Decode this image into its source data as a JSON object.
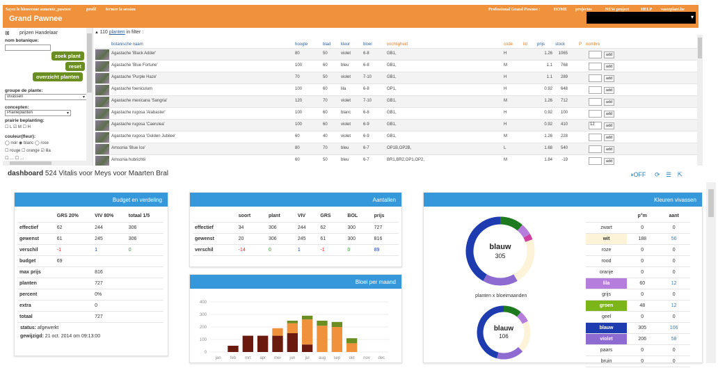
{
  "topbar": {
    "left_text": "Sayez le bienvenue aumente_pawnee",
    "link_profiel": "profil",
    "link_logout": "fermer la session",
    "right_text": "Professional Grand Pawnee :",
    "link_home": "HOME",
    "link_projects": "projectos",
    "link_new": "NEW project",
    "link_help": "HELP",
    "link_site": "vasteplant.be",
    "brand": "Grand Pawnee",
    "dropdown_arrow": "▾"
  },
  "sidebar": {
    "toggle": "⊞",
    "prices_label": "prijzen Handelaar",
    "nom_label": "nom botanique:",
    "btn_search": "zoek plant",
    "btn_reset": "reset",
    "btn_overview": "overzicht planten",
    "group_label": "groupe de plante:",
    "group_value": "vivassen",
    "concepts_label": "concepten:",
    "concepts_value": "Prairieplanten",
    "prairie_label": "prairie beplanting:",
    "prairie_opts": "☐ L ☑ M ☐ H",
    "colour_label": "couleur(fleur):",
    "colours_row1": "◯ noir  ◉ blanc  ◯ rose",
    "colours_row2": "☐ rouge  ☐ orange  ☑ lila",
    "colours_row3": "☐ …   ☐ …"
  },
  "grid": {
    "count": "110",
    "count_link": "planten",
    "count_suffix": "in filter :",
    "headers": {
      "name": "botanische naam",
      "height": "hoogte",
      "leaf": "blad",
      "colour": "kleur",
      "bloom": "bloei",
      "moisture": "vochtigheid",
      "code": "code",
      "lid": "lid",
      "price": "prijs",
      "stock": "stock",
      "p": "P",
      "number": "nombre"
    },
    "add_label": "add",
    "rows": [
      {
        "name": "Agastache 'Black Adder'",
        "height": "80",
        "leaf": "50",
        "colour": "violet",
        "bloom": "6-8",
        "moisture": "GB1,",
        "code": "H",
        "price": "1.26",
        "stock": "1065",
        "qty": ""
      },
      {
        "name": "Agastache 'Blue Fortune'",
        "height": "100",
        "leaf": "60",
        "colour": "bleu",
        "bloom": "6-8",
        "moisture": "GB1,",
        "code": "M",
        "price": "1.1",
        "stock": "768",
        "qty": ""
      },
      {
        "name": "Agastache 'Purple Haze'",
        "height": "70",
        "leaf": "50",
        "colour": "violet",
        "bloom": "7-10",
        "moisture": "GB1,",
        "code": "H",
        "price": "1.1",
        "stock": "289",
        "qty": ""
      },
      {
        "name": "Agastache foeniculum",
        "height": "100",
        "leaf": "60",
        "colour": "lila",
        "bloom": "6-8",
        "moisture": "OP1,",
        "code": "H",
        "price": "0.92",
        "stock": "648",
        "qty": ""
      },
      {
        "name": "Agastache mexicana 'Sangria'",
        "height": "120",
        "leaf": "70",
        "colour": "violet",
        "bloom": "7-10",
        "moisture": "GB1,",
        "code": "M",
        "price": "1.26",
        "stock": "712",
        "qty": ""
      },
      {
        "name": "Agastache rugosa 'Alabaster'",
        "height": "100",
        "leaf": "60",
        "colour": "blanc",
        "bloom": "6-8",
        "moisture": "GB1,",
        "code": "H",
        "price": "0.92",
        "stock": "100",
        "qty": ""
      },
      {
        "name": "Agastache rugosa 'Caerulea'",
        "height": "100",
        "leaf": "60",
        "colour": "violet",
        "bloom": "6-9",
        "moisture": "GB1,",
        "code": "H",
        "price": "0.92",
        "stock": "410",
        "qty": "12"
      },
      {
        "name": "Agastache rugosa 'Golden Jubilee'",
        "height": "60",
        "leaf": "40",
        "colour": "violet",
        "bloom": "6-9",
        "moisture": "GB1,",
        "code": "M",
        "price": "1.26",
        "stock": "228",
        "qty": ""
      },
      {
        "name": "Amsonia 'Blue Ice'",
        "height": "80",
        "leaf": "70",
        "colour": "bleu",
        "bloom": "6-7",
        "moisture": "OP1B,OP2B,",
        "code": "L",
        "price": "1.68",
        "stock": "540",
        "qty": ""
      },
      {
        "name": "Amsonia hubrichtii",
        "height": "60",
        "leaf": "50",
        "colour": "bleu",
        "bloom": "6-7",
        "moisture": "BR1,BR2,OP1,OP2,",
        "code": "M",
        "price": "1.84",
        "stock": "-19",
        "qty": ""
      }
    ]
  },
  "dashboard": {
    "label": "dashboard",
    "title": "524 Vitalis voor Meys voor Maarten Bral",
    "off_label": "OFF",
    "icons": [
      "refresh-icon",
      "list-icon",
      "external-link-icon"
    ]
  },
  "budget": {
    "title": "Budget en verdeling",
    "headers": [
      "",
      "GRS 20%",
      "VIV 80%",
      "totaal 1/5"
    ],
    "rows": [
      [
        "effectief",
        "62",
        "244",
        "306"
      ],
      [
        "gewenst",
        "61",
        "245",
        "306"
      ],
      [
        "verschil",
        "-1",
        "1",
        "0"
      ],
      [
        "budget",
        "69",
        "",
        ""
      ],
      [
        "max prijs",
        "",
        "816",
        ""
      ],
      [
        "planten",
        "",
        "727",
        ""
      ],
      [
        "percent",
        "",
        "0%",
        ""
      ],
      [
        "extra",
        "",
        "0",
        ""
      ],
      [
        "totaal",
        "",
        "727",
        ""
      ]
    ],
    "status_label": "status:",
    "status_value": "afgewerkt",
    "modified_label": "gewijzigd:",
    "modified_value": "21 oct. 2014 om 09:13:00"
  },
  "counts": {
    "title": "Aantallen",
    "headers": [
      "",
      "soort",
      "plant",
      "VIV",
      "GRS",
      "BOL",
      "prijs"
    ],
    "rows": [
      [
        "effectief",
        "34",
        "306",
        "244",
        "62",
        "300",
        "727"
      ],
      [
        "gewenst",
        "20",
        "306",
        "245",
        "61",
        "300",
        "816"
      ],
      [
        "verschil",
        "-14",
        "0",
        "1",
        "-1",
        "0",
        "89"
      ]
    ]
  },
  "bloom": {
    "title": "Bloei per maand",
    "yticks": [
      "400",
      "300",
      "200",
      "100",
      "0"
    ],
    "months": [
      "jan",
      "feb",
      "mrt",
      "apr",
      "mei",
      "jun",
      "jul",
      "aug",
      "sep",
      "okt",
      "nov",
      "dec"
    ]
  },
  "chart_data": {
    "type": "bar",
    "categories": [
      "jan",
      "feb",
      "mrt",
      "apr",
      "mei",
      "jun",
      "jul",
      "aug",
      "sep",
      "okt",
      "nov",
      "dec"
    ],
    "ylim": [
      0,
      400
    ],
    "series": [
      {
        "values": [
          0,
          50,
          130,
          130,
          0,
          0,
          0,
          0,
          0,
          0,
          0,
          0
        ],
        "color": "#6b1a0f"
      },
      {
        "values": [
          0,
          0,
          0,
          0,
          130,
          150,
          60,
          0,
          0,
          0,
          0,
          0
        ],
        "color": "#6b1a0f"
      },
      {
        "values": [
          0,
          0,
          0,
          0,
          60,
          80,
          200,
          210,
          200,
          70,
          0,
          0
        ],
        "color": "#f0913b"
      },
      {
        "values": [
          0,
          0,
          0,
          0,
          0,
          20,
          30,
          40,
          40,
          40,
          0,
          0
        ],
        "color": "#6b8e23"
      }
    ]
  },
  "colours": {
    "title": "Kleuren vivassen",
    "headers": [
      "",
      "p°m",
      "aant"
    ],
    "rows": [
      {
        "name": "zwart",
        "pm": "0",
        "aant": "0",
        "bg": "",
        "fg": "#333"
      },
      {
        "name": "wit",
        "pm": "188",
        "aant": "56",
        "bg": "#fdf3d8",
        "fg": "#333"
      },
      {
        "name": "roze",
        "pm": "0",
        "aant": "0",
        "bg": "",
        "fg": "#333"
      },
      {
        "name": "rood",
        "pm": "0",
        "aant": "0",
        "bg": "",
        "fg": "#333"
      },
      {
        "name": "oranje",
        "pm": "0",
        "aant": "0",
        "bg": "",
        "fg": "#333"
      },
      {
        "name": "lila",
        "pm": "60",
        "aant": "12",
        "bg": "#b57edc",
        "fg": "#fff"
      },
      {
        "name": "grijs",
        "pm": "0",
        "aant": "0",
        "bg": "",
        "fg": "#333"
      },
      {
        "name": "groen",
        "pm": "48",
        "aant": "12",
        "bg": "#7cb518",
        "fg": "#fff"
      },
      {
        "name": "geel",
        "pm": "0",
        "aant": "0",
        "bg": "",
        "fg": "#333"
      },
      {
        "name": "blauw",
        "pm": "305",
        "aant": "106",
        "bg": "#1e3bb0",
        "fg": "#fff"
      },
      {
        "name": "violet",
        "pm": "206",
        "aant": "58",
        "bg": "#8e6bd0",
        "fg": "#fff"
      },
      {
        "name": "paars",
        "pm": "0",
        "aant": "0",
        "bg": "",
        "fg": "#333"
      },
      {
        "name": "bruin",
        "pm": "0",
        "aant": "0",
        "bg": "",
        "fg": "#333"
      }
    ],
    "donut1_label": "blauw",
    "donut1_value": "305",
    "donut_caption": "planten x bloeimaanden",
    "donut2_label": "blauw",
    "donut2_value": "106"
  }
}
